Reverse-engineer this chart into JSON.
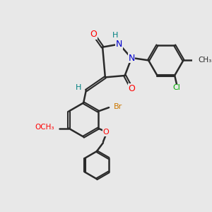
{
  "background_color": "#e8e8e8",
  "bond_color": "#2a2a2a",
  "bond_width": 1.8,
  "figsize": [
    3.0,
    3.0
  ],
  "dpi": 100,
  "atom_colors": {
    "O": "#ff0000",
    "N": "#0000cc",
    "H": "#008080",
    "Br": "#cc7700",
    "Cl": "#00aa00",
    "C": "#2a2a2a"
  }
}
